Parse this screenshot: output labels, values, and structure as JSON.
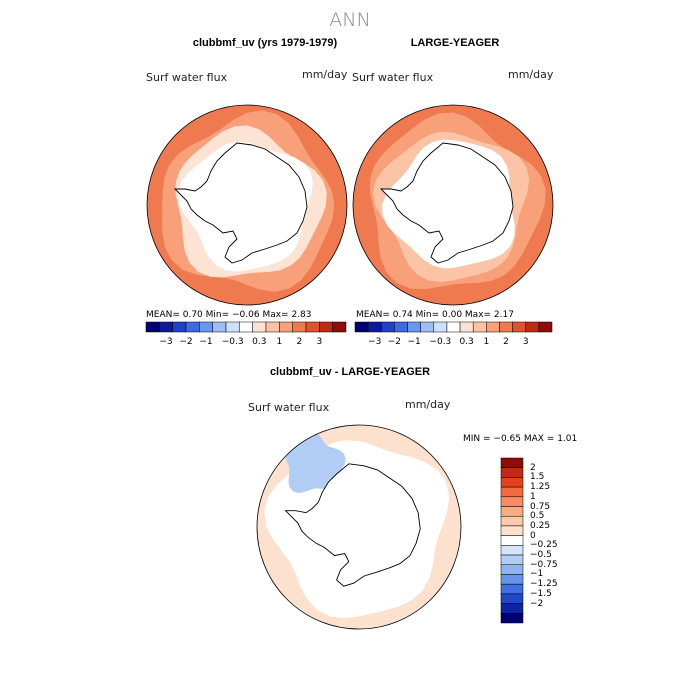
{
  "figure": {
    "title": "ANN",
    "panel1": {
      "title": "clubbmf_uv (yrs 1979-1979)",
      "var": "Surf water flux",
      "units": "mm/day",
      "stats": "MEAN=    0.70   Min=   −0.06   Max=     2.83"
    },
    "panel2": {
      "title": "LARGE-YEAGER",
      "var": "Surf water flux",
      "units": "mm/day",
      "stats": "MEAN=    0.74   Min=     0.00   Max=     2.17"
    },
    "panel3": {
      "title": "clubbmf_uv - LARGE-YEAGER",
      "var": "Surf water flux",
      "units": "mm/day",
      "stats": "MIN  =    −0.65  MAX  =     1.01"
    }
  },
  "colorbars": {
    "horizontal": {
      "colors": [
        "#000073",
        "#0d1a99",
        "#1f3fcc",
        "#3d6be6",
        "#6b96f0",
        "#9ebef5",
        "#cfe0fa",
        "#ffffff",
        "#fde3d3",
        "#fbc4a6",
        "#f7a07a",
        "#f07a50",
        "#e2522e",
        "#c02a14",
        "#8e0d07"
      ],
      "tick_labels": [
        "−3",
        "−2",
        "−1",
        "−0.3",
        "0.3",
        "1",
        "2",
        "3"
      ]
    },
    "vertical": {
      "colors": [
        "#8e0d07",
        "#c02a14",
        "#e2421d",
        "#f26a3e",
        "#f78c60",
        "#f9ab85",
        "#fbc8aa",
        "#fde1cf",
        "#ffffff",
        "#d5e4fa",
        "#b2cdf5",
        "#8fb3ef",
        "#6895ea",
        "#3f6fe2",
        "#1f47c8",
        "#0d25a0",
        "#000073"
      ],
      "tick_labels": [
        "2",
        "1.5",
        "1.25",
        "1",
        "0.75",
        "0.5",
        "0.25",
        "0",
        "−0.25",
        "−0.5",
        "−0.75",
        "−1",
        "−1.25",
        "−1.5",
        "−2"
      ]
    }
  },
  "chart_data": [
    {
      "type": "heatmap",
      "title": "clubbmf_uv (yrs 1979-1979)",
      "variable": "Surf water flux",
      "units": "mm/day",
      "projection": "south polar stereographic",
      "mean": 0.7,
      "min": -0.06,
      "max": 2.83,
      "contour_levels": [
        -3,
        -2,
        -1,
        -0.3,
        0.3,
        1,
        2,
        3
      ],
      "bands": [
        {
          "ring": "coast",
          "value": 0.1
        },
        {
          "ring": "inner ocean",
          "value": 0.5
        },
        {
          "ring": "mid ocean",
          "value": 1.2
        },
        {
          "ring": "outer ocean",
          "value": 2.0
        }
      ],
      "continent_value": -0.05
    },
    {
      "type": "heatmap",
      "title": "LARGE-YEAGER",
      "variable": "Surf water flux",
      "units": "mm/day",
      "projection": "south polar stereographic",
      "mean": 0.74,
      "min": 0.0,
      "max": 2.17,
      "contour_levels": [
        -3,
        -2,
        -1,
        -0.3,
        0.3,
        1,
        2,
        3
      ],
      "bands": [
        {
          "ring": "coast",
          "value": 0.3
        },
        {
          "ring": "inner ocean",
          "value": 0.8
        },
        {
          "ring": "mid ocean",
          "value": 1.3
        },
        {
          "ring": "outer ocean",
          "value": 1.8
        }
      ],
      "continent_value": null
    },
    {
      "type": "heatmap",
      "title": "clubbmf_uv - LARGE-YEAGER",
      "variable": "Surf water flux",
      "units": "mm/day",
      "projection": "south polar stereographic",
      "min": -0.65,
      "max": 1.01,
      "contour_levels": [
        -2,
        -1.5,
        -1.25,
        -1,
        -0.75,
        -0.5,
        -0.25,
        0,
        0.25,
        0.5,
        0.75,
        1,
        1.25,
        1.5,
        2
      ],
      "bands": [
        {
          "ring": "coast",
          "value": 0.1
        },
        {
          "ring": "inner ocean",
          "value": 0.1
        },
        {
          "ring": "mid ocean",
          "value": 0.2
        },
        {
          "ring": "outer ocean",
          "value": 0.4
        }
      ],
      "anomaly_region": {
        "sector": "upper-left",
        "value": -0.4
      },
      "continent_value": null
    }
  ]
}
